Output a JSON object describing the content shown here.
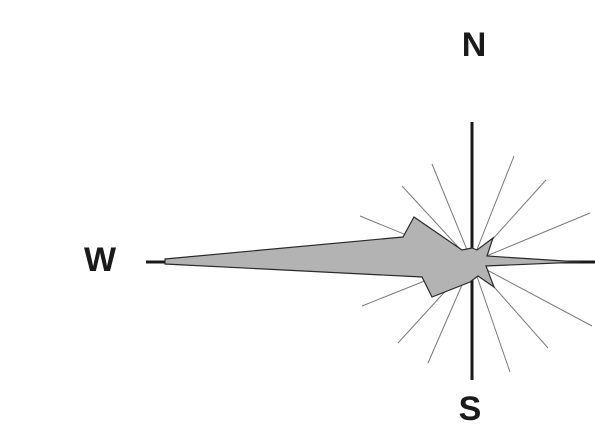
{
  "labels": {
    "north": "N",
    "south": "S",
    "west": "W"
  },
  "colors": {
    "rose_fill": "#b3b3b3",
    "rose_outline": "#2a2a2a",
    "axis": "#1a1a1a",
    "rays": "#7a7a7a",
    "background": "#ffffff"
  }
}
